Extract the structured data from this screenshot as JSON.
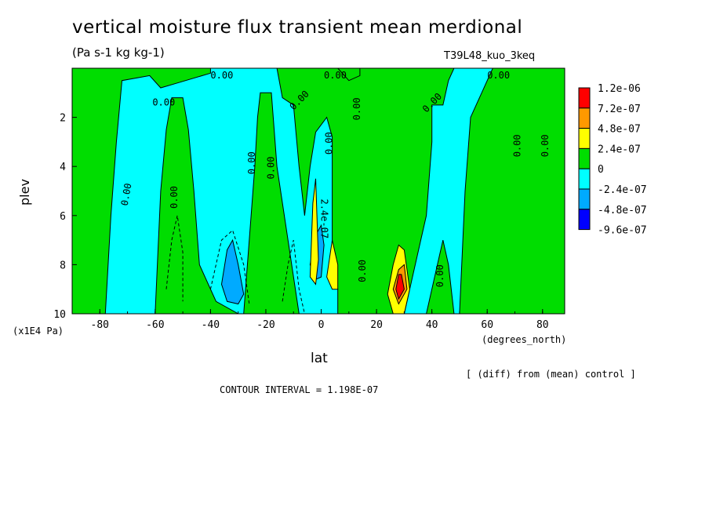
{
  "chart_data": {
    "type": "heatmap",
    "title": "vertical moisture flux transient mean merdional",
    "subtitle": "(Pa s-1 kg kg-1)",
    "run_label": "T39L48_kuo_3keq",
    "xlabel": "lat",
    "xunit": "(degrees_north)",
    "ylabel": "plev",
    "yunit": "(x1E4 Pa)",
    "xlim": [
      -90,
      88
    ],
    "ylim": [
      10,
      0
    ],
    "x_ticks": [
      "-80",
      "-60",
      "-40",
      "-20",
      "0",
      "20",
      "40",
      "60",
      "80"
    ],
    "y_ticks": [
      "2",
      "4",
      "6",
      "8",
      "10"
    ],
    "contour_interval_text": "CONTOUR INTERVAL = 1.198E-07",
    "diff_note": "[ (diff) from (mean) control ]",
    "legend": {
      "labels": [
        "1.2e-06",
        "7.2e-07",
        "4.8e-07",
        "2.4e-07",
        "0",
        "-2.4e-07",
        "-4.8e-07",
        "-9.6e-07"
      ],
      "colors": [
        "#ff0000",
        "#ff9900",
        "#ffff00",
        "#00dd00",
        "#00ffff",
        "#00aaff",
        "#0000ff"
      ]
    },
    "contour_labels": [
      "0.00",
      "0.00",
      "0.00",
      "0.00",
      "0.00",
      "0.00",
      "0.00",
      "0.00",
      "0.00",
      "0.00",
      "0.00",
      "0.00",
      "0.00",
      "0.00",
      "0.00",
      "0.00",
      "2.4e-07"
    ],
    "regions": [
      {
        "level": "0",
        "polys": [
          [
            [
              -90,
              0.0
            ],
            [
              -90,
              10
            ],
            [
              -78,
              10
            ],
            [
              -76,
              6
            ],
            [
              -74,
              3
            ],
            [
              -72,
              0.5
            ],
            [
              -62,
              0.3
            ],
            [
              -58,
              0.8
            ],
            [
              -52,
              0.6
            ],
            [
              -40,
              0.2
            ],
            [
              -40,
              0.0
            ]
          ]
        ]
      },
      {
        "level": "0",
        "polys": [
          [
            [
              -60,
              10
            ],
            [
              -58,
              5
            ],
            [
              -56,
              2.5
            ],
            [
              -54,
              1.2
            ],
            [
              -50,
              1.2
            ],
            [
              -48,
              2.5
            ],
            [
              -46,
              5
            ],
            [
              -44,
              8
            ],
            [
              -38,
              9.5
            ],
            [
              -30,
              10
            ]
          ]
        ]
      },
      {
        "level": "0",
        "polys": [
          [
            [
              -28,
              10
            ],
            [
              -24,
              4
            ],
            [
              -23,
              2
            ],
            [
              -22,
              1
            ],
            [
              -18,
              1
            ],
            [
              -16,
              4
            ],
            [
              -12,
              7
            ],
            [
              -8,
              10
            ]
          ]
        ]
      },
      {
        "level": "0",
        "polys": [
          [
            [
              -16,
              0.0
            ],
            [
              -14,
              1.2
            ],
            [
              -10,
              1.5
            ],
            [
              -8,
              4
            ],
            [
              -6,
              6
            ],
            [
              -4,
              4
            ],
            [
              -2,
              2.6
            ],
            [
              2,
              2
            ],
            [
              4,
              2.8
            ],
            [
              4,
              7.5
            ],
            [
              6,
              9
            ],
            [
              6,
              10
            ],
            [
              30,
              10
            ],
            [
              32,
              9
            ],
            [
              36,
              7
            ],
            [
              38,
              6
            ],
            [
              40,
              3
            ],
            [
              40,
              1.5
            ],
            [
              42,
              1.5
            ],
            [
              44,
              1.5
            ],
            [
              46,
              0.5
            ],
            [
              48,
              0.0
            ]
          ]
        ]
      },
      {
        "level": "0",
        "polys": [
          [
            [
              6,
              0.0
            ],
            [
              10,
              0.5
            ],
            [
              14,
              0.3
            ],
            [
              14,
              0.0
            ]
          ]
        ]
      },
      {
        "level": "0",
        "polys": [
          [
            [
              38,
              10
            ],
            [
              42,
              8
            ],
            [
              44,
              7
            ],
            [
              46,
              8
            ],
            [
              48,
              10
            ]
          ]
        ]
      },
      {
        "level": "0",
        "polys": [
          [
            [
              50,
              10
            ],
            [
              52,
              5
            ],
            [
              54,
              2
            ],
            [
              58,
              1
            ],
            [
              62,
              0.0
            ],
            [
              88,
              0.0
            ],
            [
              88,
              10
            ]
          ]
        ]
      },
      {
        "level": "-2.4e-07",
        "polys": [
          [
            [
              -36,
              8.8
            ],
            [
              -34,
              7.4
            ],
            [
              -32,
              7.0
            ],
            [
              -30,
              8.0
            ],
            [
              -28,
              9.2
            ],
            [
              -30,
              9.6
            ],
            [
              -34,
              9.5
            ]
          ]
        ]
      },
      {
        "level": "-2.4e-07",
        "polys": [
          [
            [
              -4,
              8.0
            ],
            [
              -2,
              6.8
            ],
            [
              0,
              6.4
            ],
            [
              1,
              7.2
            ],
            [
              0,
              8.5
            ],
            [
              -2,
              8.6
            ]
          ]
        ]
      },
      {
        "level": "2.4e-07",
        "polys": [
          [
            [
              -4,
              8.5
            ],
            [
              -3,
              5.5
            ],
            [
              -2,
              4.5
            ],
            [
              -1,
              7.8
            ],
            [
              -2,
              8.8
            ]
          ]
        ]
      },
      {
        "level": "2.4e-07",
        "polys": [
          [
            [
              2,
              8.5
            ],
            [
              4,
              7.0
            ],
            [
              6,
              8.0
            ],
            [
              6,
              9.0
            ],
            [
              4,
              9.0
            ]
          ]
        ]
      },
      {
        "level": "2.4e-07",
        "polys": [
          [
            [
              24,
              9.2
            ],
            [
              26,
              8.0
            ],
            [
              28,
              7.2
            ],
            [
              30,
              7.4
            ],
            [
              32,
              9.0
            ],
            [
              30,
              10
            ],
            [
              26,
              10
            ]
          ]
        ]
      },
      {
        "level": "4.8e-07",
        "polys": [
          [
            [
              26,
              9.0
            ],
            [
              28,
              8.2
            ],
            [
              30,
              8.0
            ],
            [
              31,
              9.0
            ],
            [
              28,
              9.6
            ]
          ]
        ]
      },
      {
        "level": "1.2e-06",
        "polys": [
          [
            [
              27,
              9.0
            ],
            [
              28,
              8.4
            ],
            [
              29,
              8.4
            ],
            [
              30,
              9.0
            ],
            [
              28,
              9.4
            ]
          ]
        ]
      }
    ]
  }
}
